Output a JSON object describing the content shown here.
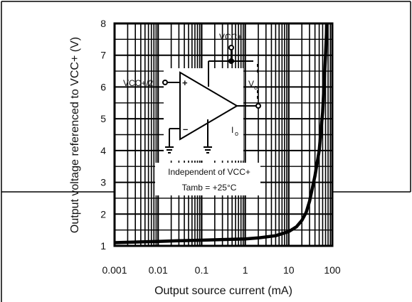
{
  "chart_data": {
    "type": "line",
    "title": "",
    "xlabel": "Output source current (mA)",
    "ylabel": "Output voltage referenced to VCC+ (V)",
    "x_scale": "log",
    "xlim": [
      0.001,
      100
    ],
    "ylim": [
      1,
      8
    ],
    "x_ticks": [
      "0.001",
      "0.01",
      "0.1",
      "1",
      "10",
      "100"
    ],
    "y_ticks": [
      "1",
      "2",
      "3",
      "4",
      "5",
      "6",
      "7",
      "8"
    ],
    "grid": true,
    "series": [
      {
        "name": "",
        "x": [
          0.001,
          0.003,
          0.01,
          0.03,
          0.1,
          0.3,
          1,
          2,
          5,
          10,
          15,
          20,
          25,
          30,
          40,
          50,
          60,
          70,
          75
        ],
        "y": [
          1.1,
          1.12,
          1.14,
          1.16,
          1.18,
          1.2,
          1.22,
          1.25,
          1.32,
          1.45,
          1.6,
          1.8,
          2.05,
          2.4,
          3.2,
          4.0,
          5.2,
          7.0,
          8.0
        ]
      }
    ],
    "annotations": {
      "vcc_plus": "VCC+",
      "vcc_half": "VCC+/2",
      "vo_main": "V",
      "vo_sub": "o",
      "io_main": "I",
      "io_sub": "o",
      "plus_sign": "+",
      "minus_sign": "–",
      "note_line1": "Independent of VCC+",
      "note_line2": "Tamb = +25°C"
    }
  }
}
